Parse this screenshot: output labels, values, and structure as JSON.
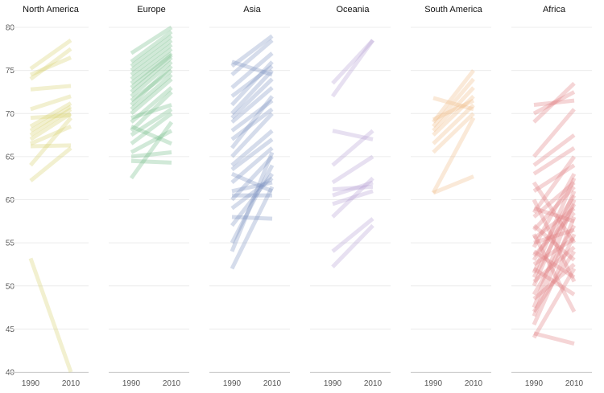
{
  "chart_data": {
    "type": "line",
    "layout": "small-multiples",
    "x_ticks": [
      "1990",
      "2010"
    ],
    "y_ticks": [
      "40",
      "45",
      "50",
      "55",
      "60",
      "65",
      "70",
      "75",
      "80"
    ],
    "ylim": [
      40,
      80
    ],
    "xlim": [
      1985,
      2015
    ],
    "grid": true,
    "panels": [
      {
        "title": "North America",
        "color": "#d6cf6d",
        "series": [
          {
            "y1990": 53.2,
            "y2010": 40.0
          },
          {
            "y1990": 62.2,
            "y2010": 66.0
          },
          {
            "y1990": 64.0,
            "y2010": 69.5
          },
          {
            "y1990": 66.2,
            "y2010": 66.3
          },
          {
            "y1990": 66.5,
            "y2010": 68.5
          },
          {
            "y1990": 67.0,
            "y2010": 70.0
          },
          {
            "y1990": 67.5,
            "y2010": 70.5
          },
          {
            "y1990": 68.0,
            "y2010": 70.8
          },
          {
            "y1990": 68.5,
            "y2010": 71.2
          },
          {
            "y1990": 69.5,
            "y2010": 69.8
          },
          {
            "y1990": 70.5,
            "y2010": 72.0
          },
          {
            "y1990": 72.8,
            "y2010": 73.2
          },
          {
            "y1990": 74.5,
            "y2010": 76.5
          },
          {
            "y1990": 74.0,
            "y2010": 77.5
          },
          {
            "y1990": 75.2,
            "y2010": 78.5
          }
        ]
      },
      {
        "title": "Europe",
        "color": "#6fba86",
        "series": [
          {
            "y1990": 62.5,
            "y2010": 69.0
          },
          {
            "y1990": 64.5,
            "y2010": 64.3
          },
          {
            "y1990": 65.0,
            "y2010": 65.5
          },
          {
            "y1990": 65.5,
            "y2010": 68.0
          },
          {
            "y1990": 66.5,
            "y2010": 70.0
          },
          {
            "y1990": 67.5,
            "y2010": 70.5
          },
          {
            "y1990": 68.0,
            "y2010": 72.5
          },
          {
            "y1990": 69.0,
            "y2010": 73.0
          },
          {
            "y1990": 70.0,
            "y2010": 74.0
          },
          {
            "y1990": 70.5,
            "y2010": 74.5
          },
          {
            "y1990": 71.0,
            "y2010": 75.5
          },
          {
            "y1990": 72.0,
            "y2010": 76.0
          },
          {
            "y1990": 72.5,
            "y2010": 76.5
          },
          {
            "y1990": 73.5,
            "y2010": 77.0
          },
          {
            "y1990": 74.0,
            "y2010": 77.5
          },
          {
            "y1990": 74.5,
            "y2010": 78.0
          },
          {
            "y1990": 75.0,
            "y2010": 78.5
          },
          {
            "y1990": 75.5,
            "y2010": 79.0
          },
          {
            "y1990": 76.0,
            "y2010": 79.5
          },
          {
            "y1990": 77.0,
            "y2010": 80.0
          },
          {
            "y1990": 73.0,
            "y2010": 76.8
          },
          {
            "y1990": 71.5,
            "y2010": 75.0
          },
          {
            "y1990": 69.5,
            "y2010": 71.0
          },
          {
            "y1990": 68.5,
            "y2010": 66.5
          }
        ]
      },
      {
        "title": "Asia",
        "color": "#7b93c2",
        "series": [
          {
            "y1990": 52.0,
            "y2010": 61.5
          },
          {
            "y1990": 54.0,
            "y2010": 65.5
          },
          {
            "y1990": 55.0,
            "y2010": 64.0
          },
          {
            "y1990": 57.0,
            "y2010": 63.0
          },
          {
            "y1990": 58.0,
            "y2010": 57.8
          },
          {
            "y1990": 59.0,
            "y2010": 62.5
          },
          {
            "y1990": 60.0,
            "y2010": 65.0
          },
          {
            "y1990": 61.0,
            "y2010": 62.0
          },
          {
            "y1990": 62.0,
            "y2010": 66.0
          },
          {
            "y1990": 63.0,
            "y2010": 61.0
          },
          {
            "y1990": 64.0,
            "y2010": 68.0
          },
          {
            "y1990": 65.0,
            "y2010": 70.0
          },
          {
            "y1990": 66.0,
            "y2010": 72.0
          },
          {
            "y1990": 67.0,
            "y2010": 70.5
          },
          {
            "y1990": 68.0,
            "y2010": 71.5
          },
          {
            "y1990": 69.0,
            "y2010": 73.0
          },
          {
            "y1990": 69.5,
            "y2010": 74.0
          },
          {
            "y1990": 70.0,
            "y2010": 75.0
          },
          {
            "y1990": 71.0,
            "y2010": 76.0
          },
          {
            "y1990": 72.0,
            "y2010": 75.5
          },
          {
            "y1990": 73.0,
            "y2010": 77.0
          },
          {
            "y1990": 74.5,
            "y2010": 78.5
          },
          {
            "y1990": 75.5,
            "y2010": 79.0
          },
          {
            "y1990": 76.0,
            "y2010": 74.5
          },
          {
            "y1990": 63.5,
            "y2010": 67.0
          },
          {
            "y1990": 60.5,
            "y2010": 60.5
          }
        ]
      },
      {
        "title": "Oceania",
        "color": "#b59fd3",
        "series": [
          {
            "y1990": 52.2,
            "y2010": 57.0
          },
          {
            "y1990": 54.0,
            "y2010": 57.8
          },
          {
            "y1990": 58.0,
            "y2010": 62.5
          },
          {
            "y1990": 59.5,
            "y2010": 61.0
          },
          {
            "y1990": 60.5,
            "y2010": 62.0
          },
          {
            "y1990": 61.2,
            "y2010": 61.5
          },
          {
            "y1990": 62.0,
            "y2010": 65.0
          },
          {
            "y1990": 64.0,
            "y2010": 68.0
          },
          {
            "y1990": 68.0,
            "y2010": 67.0
          },
          {
            "y1990": 72.0,
            "y2010": 78.5
          },
          {
            "y1990": 73.5,
            "y2010": 78.5
          }
        ]
      },
      {
        "title": "South America",
        "color": "#eebc86",
        "series": [
          {
            "y1990": 60.8,
            "y2010": 62.7
          },
          {
            "y1990": 60.8,
            "y2010": 69.5
          },
          {
            "y1990": 65.5,
            "y2010": 70.0
          },
          {
            "y1990": 66.5,
            "y2010": 71.0
          },
          {
            "y1990": 67.5,
            "y2010": 72.0
          },
          {
            "y1990": 68.0,
            "y2010": 73.0
          },
          {
            "y1990": 68.5,
            "y2010": 74.0
          },
          {
            "y1990": 69.0,
            "y2010": 75.0
          },
          {
            "y1990": 69.3,
            "y2010": 71.5
          },
          {
            "y1990": 71.8,
            "y2010": 70.5
          }
        ]
      },
      {
        "title": "Africa",
        "color": "#e07b7f",
        "series": [
          {
            "y1990": 44.0,
            "y2010": 52.0
          },
          {
            "y1990": 44.5,
            "y2010": 43.3
          },
          {
            "y1990": 45.5,
            "y2010": 56.0
          },
          {
            "y1990": 46.5,
            "y2010": 58.0
          },
          {
            "y1990": 47.5,
            "y2010": 60.0
          },
          {
            "y1990": 48.5,
            "y2010": 52.5
          },
          {
            "y1990": 49.0,
            "y2010": 57.0
          },
          {
            "y1990": 50.0,
            "y2010": 61.0
          },
          {
            "y1990": 50.5,
            "y2010": 54.5
          },
          {
            "y1990": 51.0,
            "y2010": 59.5
          },
          {
            "y1990": 51.5,
            "y2010": 62.5
          },
          {
            "y1990": 52.0,
            "y2010": 49.0
          },
          {
            "y1990": 52.5,
            "y2010": 55.5
          },
          {
            "y1990": 53.0,
            "y2010": 60.5
          },
          {
            "y1990": 53.5,
            "y2010": 58.5
          },
          {
            "y1990": 54.0,
            "y2010": 51.0
          },
          {
            "y1990": 54.5,
            "y2010": 63.0
          },
          {
            "y1990": 55.0,
            "y2010": 56.5
          },
          {
            "y1990": 55.5,
            "y2010": 59.0
          },
          {
            "y1990": 56.0,
            "y2010": 47.0
          },
          {
            "y1990": 56.5,
            "y2010": 61.5
          },
          {
            "y1990": 57.0,
            "y2010": 53.0
          },
          {
            "y1990": 58.0,
            "y2010": 62.0
          },
          {
            "y1990": 59.0,
            "y2010": 57.5
          },
          {
            "y1990": 60.0,
            "y2010": 50.5
          },
          {
            "y1990": 61.0,
            "y2010": 64.0
          },
          {
            "y1990": 62.0,
            "y2010": 55.0
          },
          {
            "y1990": 63.0,
            "y2010": 66.0
          },
          {
            "y1990": 64.0,
            "y2010": 67.5
          },
          {
            "y1990": 65.0,
            "y2010": 70.5
          },
          {
            "y1990": 69.0,
            "y2010": 73.5
          },
          {
            "y1990": 70.0,
            "y2010": 72.5
          },
          {
            "y1990": 71.0,
            "y2010": 71.5
          },
          {
            "y1990": 58.5,
            "y2010": 65.0
          },
          {
            "y1990": 47.0,
            "y2010": 54.0
          }
        ]
      }
    ]
  }
}
